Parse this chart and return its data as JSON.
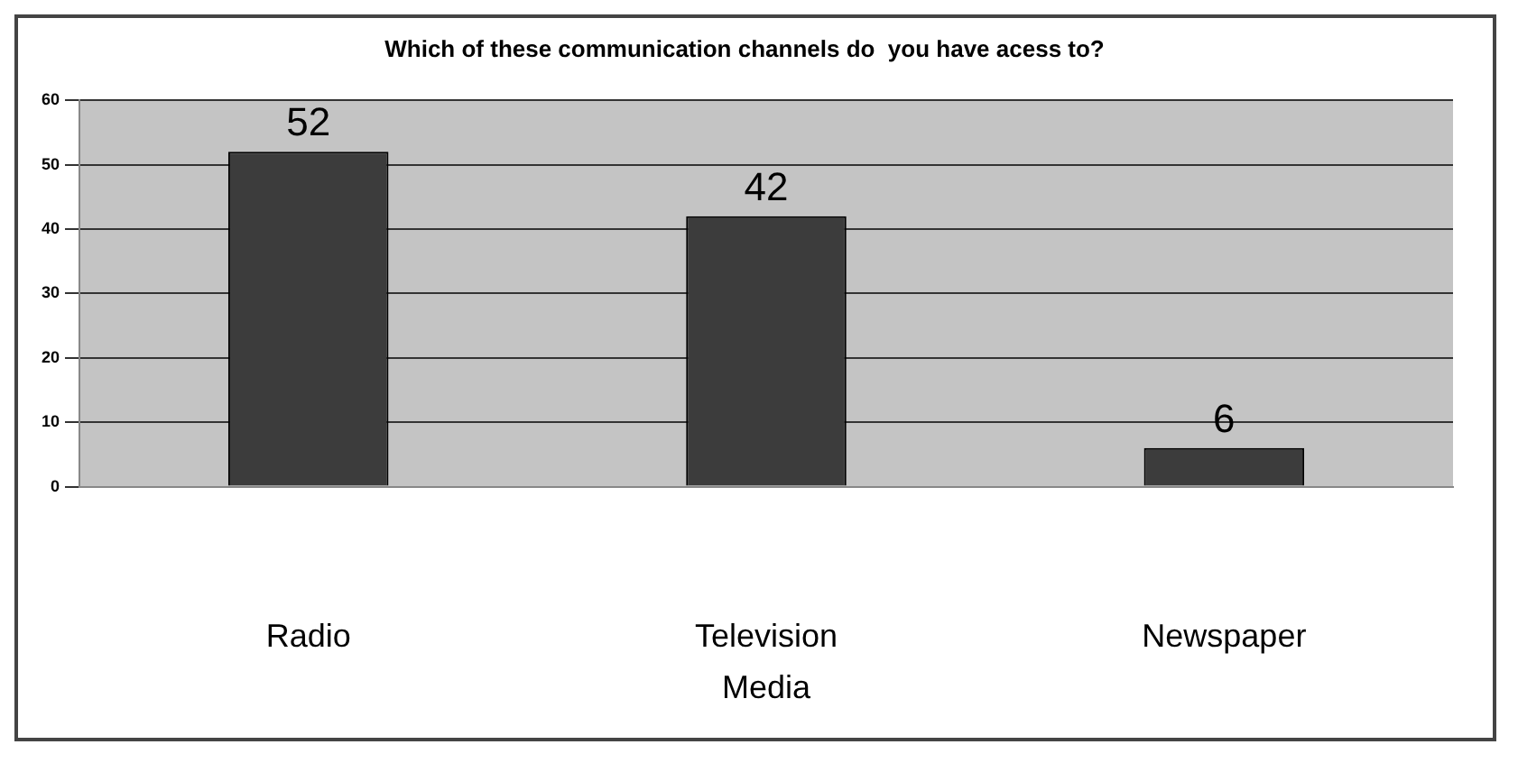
{
  "chart_data": {
    "type": "bar",
    "title": "Which of these communication channels do  you have acess to?",
    "xlabel": "Media",
    "categories": [
      "Radio",
      "Television",
      "Newspaper"
    ],
    "values": [
      52,
      42,
      6
    ],
    "color": "#3c3c3c",
    "ylim": [
      0,
      60
    ],
    "yticks": [
      0,
      10,
      20,
      30,
      40,
      50,
      60
    ],
    "grid": "y",
    "data_labels": true,
    "legend": false
  }
}
